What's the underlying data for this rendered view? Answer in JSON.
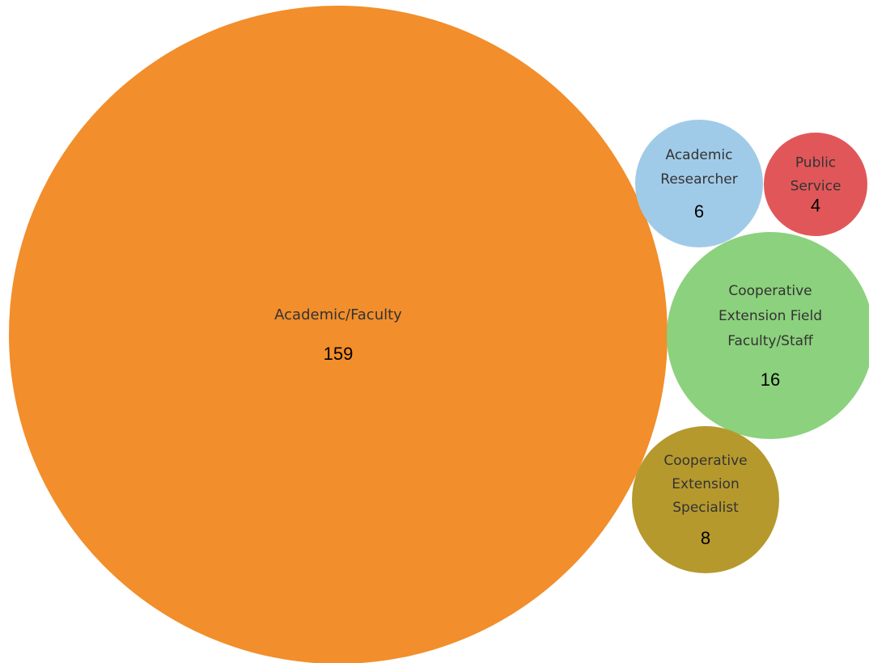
{
  "chart_data": {
    "type": "bubble",
    "items": [
      {
        "label_lines": [
          "Academic/Faculty"
        ],
        "value": 159,
        "value_text": "159",
        "color": "#F28E2B"
      },
      {
        "label_lines": [
          "Academic",
          "Researcher"
        ],
        "value": 6,
        "value_text": "6",
        "color": "#A0CBE8"
      },
      {
        "label_lines": [
          "Public",
          "Service"
        ],
        "value": 4,
        "value_text": "4",
        "color": "#E15759"
      },
      {
        "label_lines": [
          "Cooperative",
          "Extension Field",
          "Faculty/Staff"
        ],
        "value": 16,
        "value_text": "16",
        "color": "#8CD17D"
      },
      {
        "label_lines": [
          "Cooperative",
          "Extension",
          "Specialist"
        ],
        "value": 8,
        "value_text": "8",
        "color": "#B6992D"
      }
    ]
  }
}
